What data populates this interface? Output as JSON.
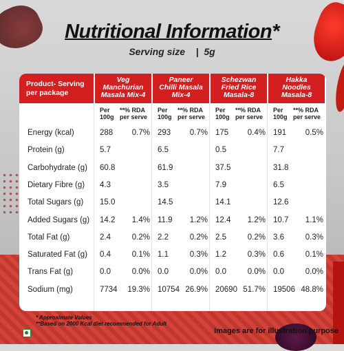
{
  "title_main": "Nutritional Information",
  "title_star": "*",
  "serving_label": "Serving size",
  "serving_sep": "|",
  "serving_value": "5g",
  "header_first": [
    "Product- Serving",
    "per package"
  ],
  "products": [
    {
      "name_lines": [
        "Veg",
        "Manchurian",
        "Masala Mix-4"
      ]
    },
    {
      "name_lines": [
        "Paneer",
        "Chilli Masala",
        "Mix-4"
      ]
    },
    {
      "name_lines": [
        "Schezwan",
        "Fried Rice",
        "Masala-8"
      ]
    },
    {
      "name_lines": [
        "Hakka",
        "Noodles",
        "Masala-8"
      ]
    }
  ],
  "subheaders": {
    "per": [
      "Per",
      "100g"
    ],
    "rda": [
      "**% RDA",
      "per serve"
    ]
  },
  "rows": [
    {
      "label": "Energy (kcal)",
      "values": [
        "288",
        "0.7%",
        "293",
        "0.7%",
        "175",
        "0.4%",
        "191",
        "0.5%"
      ]
    },
    {
      "label": "Protein (g)",
      "values": [
        "5.7",
        "",
        "6.5",
        "",
        "0.5",
        "",
        "7.7",
        ""
      ]
    },
    {
      "label": "Carbohydrate (g)",
      "values": [
        "60.8",
        "",
        "61.9",
        "",
        "37.5",
        "",
        "31.8",
        ""
      ]
    },
    {
      "label": "Dietary Fibre (g)",
      "values": [
        "4.3",
        "",
        "3.5",
        "",
        "7.9",
        "",
        "6.5",
        ""
      ]
    },
    {
      "label": "Total Sugars (g)",
      "values": [
        "15.0",
        "",
        "14.5",
        "",
        "14.1",
        "",
        "12.6",
        ""
      ]
    },
    {
      "label": "Added Sugars (g)",
      "values": [
        "14.2",
        "1.4%",
        "11.9",
        "1.2%",
        "12.4",
        "1.2%",
        "10.7",
        "1.1%"
      ]
    },
    {
      "label": "Total Fat (g)",
      "values": [
        "2.4",
        "0.2%",
        "2.2",
        "0.2%",
        "2.5",
        "0.2%",
        "3.6",
        "0.3%"
      ]
    },
    {
      "label": "Saturated Fat (g)",
      "values": [
        "0.4",
        "0.1%",
        "1.1",
        "0.3%",
        "1.2",
        "0.3%",
        "0.6",
        "0.1%"
      ]
    },
    {
      "label": "Trans Fat (g)",
      "values": [
        "0.0",
        "0.0%",
        "0.0",
        "0.0%",
        "0.0",
        "0.0%",
        "0.0",
        "0.0%"
      ]
    },
    {
      "label": "Sodium (mg)",
      "values": [
        "7734",
        "19.3%",
        "10754",
        "26.9%",
        "20690",
        "51.7%",
        "19506",
        "48.8%"
      ]
    }
  ],
  "footnote_1": "* Approximate Values",
  "footnote_2": "**Based on 2000 Kcal diet recommended for Adult",
  "disclaimer": "Images are for illustration purpose",
  "colors": {
    "header_red": "#d31f1f",
    "veg_green": "#1c8a2e"
  },
  "icons": [
    "veg-symbol-icon"
  ]
}
